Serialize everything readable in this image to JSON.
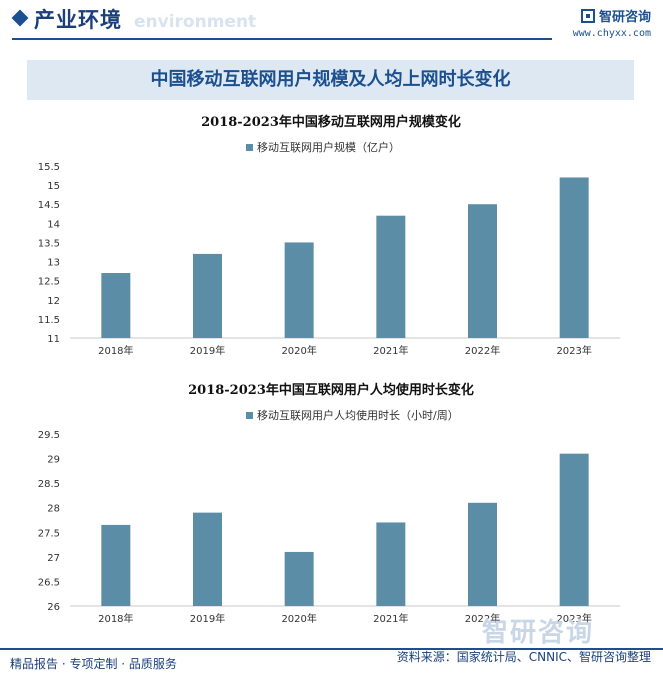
{
  "header": {
    "title": "产业环境",
    "ghost_text": "environment",
    "brand_name": "智研咨询",
    "brand_url": "www.chyxx.com"
  },
  "banner": {
    "title": "中国移动互联网用户规模及人均上网时长变化"
  },
  "chart_data": [
    {
      "type": "bar",
      "title": "2018-2023年中国移动互联网用户规模变化",
      "categories": [
        "2018年",
        "2019年",
        "2020年",
        "2021年",
        "2022年",
        "2023年"
      ],
      "series": [
        {
          "name": "移动互联网用户规模（亿户）",
          "values": [
            12.7,
            13.2,
            13.5,
            14.2,
            14.5,
            15.2
          ]
        }
      ],
      "ylim": [
        11,
        15.5
      ],
      "yticks": [
        "11",
        "11.5",
        "12",
        "12.5",
        "13",
        "13.5",
        "14",
        "14.5",
        "15",
        "15.5"
      ],
      "legend": "top-center",
      "grid": false,
      "bar_color": "#5b8ea6"
    },
    {
      "type": "bar",
      "title": "2018-2023年中国互联网用户人均使用时长变化",
      "categories": [
        "2018年",
        "2019年",
        "2020年",
        "2021年",
        "2022年",
        "2023年"
      ],
      "series": [
        {
          "name": "移动互联网用户人均使用时长（小时/周）",
          "values": [
            27.65,
            27.9,
            27.1,
            27.7,
            28.1,
            29.1
          ]
        }
      ],
      "ylim": [
        26,
        29.5
      ],
      "yticks": [
        "26",
        "26.5",
        "27",
        "27.5",
        "28",
        "28.5",
        "29",
        "29.5"
      ],
      "legend": "top-center",
      "grid": false,
      "bar_color": "#5b8ea6"
    }
  ],
  "watermark": {
    "text": "智研咨询"
  },
  "footer": {
    "left": "精品报告 · 专项定制 · 品质服务",
    "right": "资料来源：国家统计局、CNNIC、智研咨询整理"
  }
}
